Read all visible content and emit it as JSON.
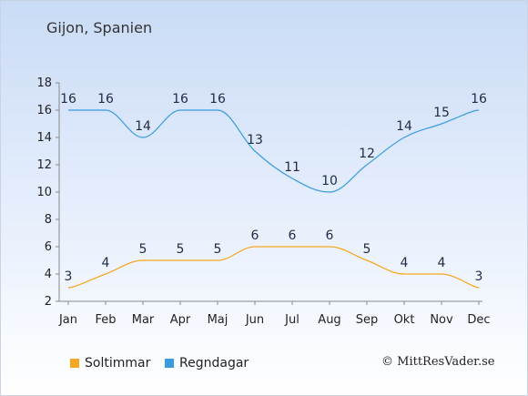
{
  "title": "Gijon, Spanien",
  "copyright": "© MittResVader.se",
  "colors": {
    "sun": "#f5a623",
    "rain": "#3a9be0",
    "axis": "#888888"
  },
  "chart_data": {
    "type": "line",
    "categories": [
      "Jan",
      "Feb",
      "Mar",
      "Apr",
      "Maj",
      "Jun",
      "Jul",
      "Aug",
      "Sep",
      "Okt",
      "Nov",
      "Dec"
    ],
    "ylim": [
      2,
      18
    ],
    "yticks": [
      2,
      4,
      6,
      8,
      10,
      12,
      14,
      16,
      18
    ],
    "grid": false,
    "legend": "bottom-left",
    "series": [
      {
        "name": "Soltimmar",
        "color": "#f5a623",
        "values": [
          3,
          4,
          5,
          5,
          5,
          6,
          6,
          6,
          5,
          4,
          4,
          3
        ]
      },
      {
        "name": "Regndagar",
        "color": "#3a9be0",
        "values": [
          16,
          16,
          14,
          16,
          16,
          13,
          11,
          10,
          12,
          14,
          15,
          16
        ]
      }
    ]
  }
}
